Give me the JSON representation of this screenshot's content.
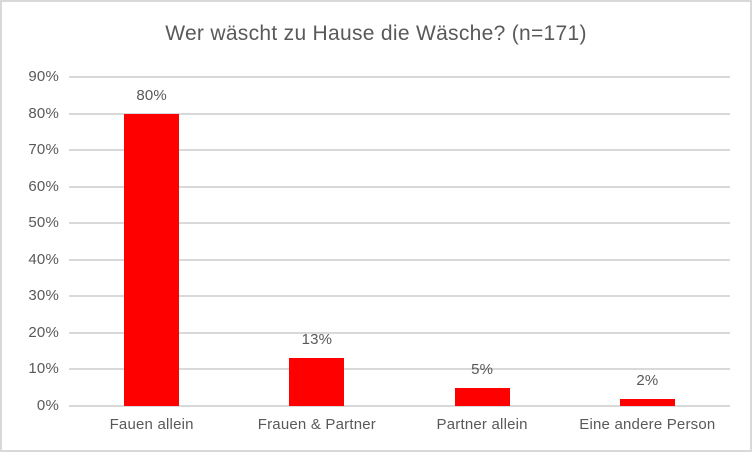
{
  "chart_data": {
    "type": "bar",
    "title": "Wer wäscht zu Hause die Wäsche? (n=171)",
    "categories": [
      "Fauen allein",
      "Frauen & Partner",
      "Partner allein",
      "Eine andere Person"
    ],
    "values": [
      80,
      13,
      5,
      2
    ],
    "value_labels": [
      "80%",
      "13%",
      "5%",
      "2%"
    ],
    "xlabel": "",
    "ylabel": "",
    "y_ticks": [
      "0%",
      "10%",
      "20%",
      "30%",
      "40%",
      "50%",
      "60%",
      "70%",
      "80%",
      "90%"
    ],
    "ylim": [
      0,
      90
    ],
    "grid": true,
    "legend": "none",
    "bar_color": "#ff0000",
    "gridline_color": "#d9d9d9",
    "text_color": "#595959",
    "background_color": "#ffffff",
    "border_color": "#d9d9d9"
  }
}
